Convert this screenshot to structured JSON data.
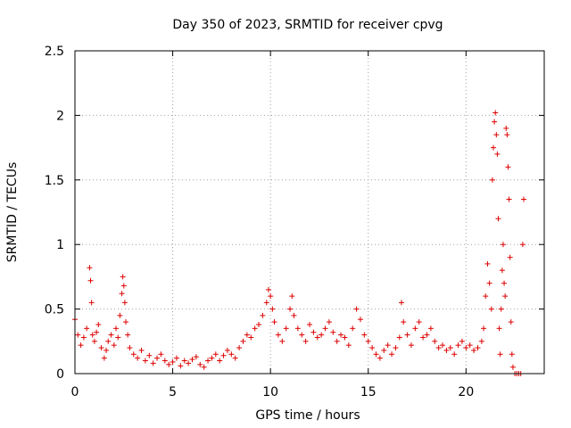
{
  "chart_data": {
    "type": "scatter",
    "title": "Day 350 of 2023, SRMTID for receiver cpvg",
    "xlabel": "GPS time / hours",
    "ylabel": "SRMTID / TECUs",
    "xlim": [
      0,
      24
    ],
    "ylim": [
      0,
      2.5
    ],
    "xticks": [
      0,
      5,
      10,
      15,
      20
    ],
    "xtick_labels": [
      "0",
      "5",
      "10",
      "15",
      "20"
    ],
    "yticks": [
      0,
      0.5,
      1,
      1.5,
      2,
      2.5
    ],
    "ytick_labels": [
      "0",
      "0.5",
      "1",
      "1.5",
      "2",
      "2.5"
    ],
    "grid": true,
    "marker": "+",
    "series": [
      {
        "name": "SRMTID",
        "color": "#dd0000",
        "x": [
          0.0,
          0.15,
          0.3,
          0.45,
          0.6,
          0.75,
          0.8,
          0.85,
          0.9,
          1.0,
          1.1,
          1.2,
          1.35,
          1.5,
          1.6,
          1.7,
          1.85,
          2.0,
          2.1,
          2.2,
          2.3,
          2.4,
          2.45,
          2.5,
          2.55,
          2.6,
          2.7,
          2.8,
          3.0,
          3.2,
          3.4,
          3.6,
          3.8,
          4.0,
          4.2,
          4.4,
          4.6,
          4.8,
          5.0,
          5.2,
          5.4,
          5.6,
          5.8,
          6.0,
          6.2,
          6.4,
          6.6,
          6.8,
          7.0,
          7.2,
          7.4,
          7.6,
          7.8,
          8.0,
          8.2,
          8.4,
          8.6,
          8.8,
          9.0,
          9.2,
          9.4,
          9.6,
          9.8,
          9.9,
          10.0,
          10.1,
          10.2,
          10.4,
          10.6,
          10.8,
          11.0,
          11.1,
          11.2,
          11.4,
          11.6,
          11.8,
          12.0,
          12.2,
          12.4,
          12.6,
          12.8,
          13.0,
          13.2,
          13.4,
          13.6,
          13.8,
          14.0,
          14.2,
          14.4,
          14.6,
          14.8,
          15.0,
          15.2,
          15.4,
          15.6,
          15.8,
          16.0,
          16.2,
          16.4,
          16.6,
          16.7,
          16.8,
          17.0,
          17.2,
          17.4,
          17.6,
          17.8,
          18.0,
          18.2,
          18.4,
          18.6,
          18.8,
          19.0,
          19.2,
          19.4,
          19.6,
          19.8,
          20.0,
          20.2,
          20.4,
          20.6,
          20.8,
          20.9,
          21.0,
          21.1,
          21.2,
          21.3,
          21.35,
          21.4,
          21.45,
          21.5,
          21.55,
          21.6,
          21.65,
          21.7,
          21.75,
          21.8,
          21.85,
          21.9,
          21.95,
          22.0,
          22.05,
          22.1,
          22.15,
          22.2,
          22.25,
          22.3,
          22.35,
          22.4,
          22.5,
          22.6,
          22.7,
          22.8,
          22.9,
          22.95
        ],
        "y": [
          0.42,
          0.3,
          0.22,
          0.28,
          0.35,
          0.82,
          0.72,
          0.55,
          0.3,
          0.25,
          0.32,
          0.38,
          0.2,
          0.12,
          0.18,
          0.25,
          0.3,
          0.22,
          0.35,
          0.28,
          0.45,
          0.62,
          0.75,
          0.68,
          0.55,
          0.4,
          0.3,
          0.2,
          0.15,
          0.12,
          0.18,
          0.1,
          0.14,
          0.08,
          0.12,
          0.15,
          0.1,
          0.07,
          0.09,
          0.12,
          0.06,
          0.1,
          0.08,
          0.11,
          0.13,
          0.07,
          0.05,
          0.1,
          0.12,
          0.15,
          0.1,
          0.14,
          0.18,
          0.15,
          0.12,
          0.2,
          0.25,
          0.3,
          0.28,
          0.35,
          0.38,
          0.45,
          0.55,
          0.65,
          0.6,
          0.5,
          0.4,
          0.3,
          0.25,
          0.35,
          0.5,
          0.6,
          0.45,
          0.35,
          0.3,
          0.25,
          0.38,
          0.32,
          0.28,
          0.3,
          0.35,
          0.4,
          0.32,
          0.25,
          0.3,
          0.28,
          0.22,
          0.35,
          0.5,
          0.42,
          0.3,
          0.25,
          0.2,
          0.15,
          0.12,
          0.18,
          0.22,
          0.15,
          0.2,
          0.28,
          0.55,
          0.4,
          0.3,
          0.22,
          0.35,
          0.4,
          0.28,
          0.3,
          0.35,
          0.25,
          0.2,
          0.22,
          0.18,
          0.2,
          0.15,
          0.22,
          0.25,
          0.2,
          0.22,
          0.18,
          0.2,
          0.25,
          0.35,
          0.6,
          0.85,
          0.7,
          0.5,
          1.5,
          1.75,
          1.95,
          2.02,
          1.85,
          1.7,
          1.2,
          0.35,
          0.15,
          0.5,
          0.8,
          1.0,
          0.7,
          0.6,
          1.9,
          1.85,
          1.6,
          1.35,
          0.9,
          0.4,
          0.15,
          0.05,
          0.0,
          0.0,
          0.0,
          0.0,
          1.0,
          1.35
        ]
      }
    ]
  }
}
